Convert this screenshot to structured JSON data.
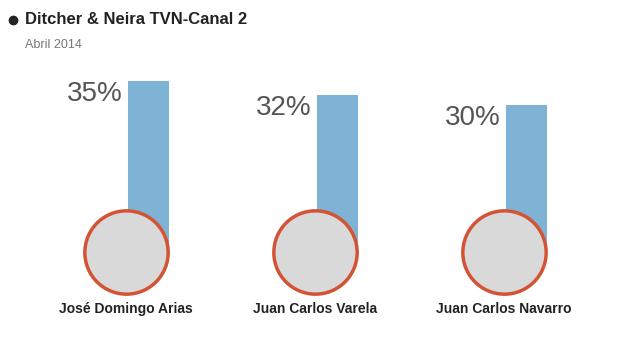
{
  "chart_data": {
    "type": "bar",
    "title": "Ditcher & Neira TVN-Canal 2",
    "subtitle": "Abril 2014",
    "categories": [
      "José Domingo Arias",
      "Juan Carlos Varela",
      "Juan Carlos Navarro"
    ],
    "values": [
      35,
      32,
      30
    ],
    "value_labels": [
      "35%",
      "32%",
      "30%"
    ],
    "color": "#7fb3d5",
    "data_labels": true,
    "tick_labels": "x",
    "grid": false
  }
}
